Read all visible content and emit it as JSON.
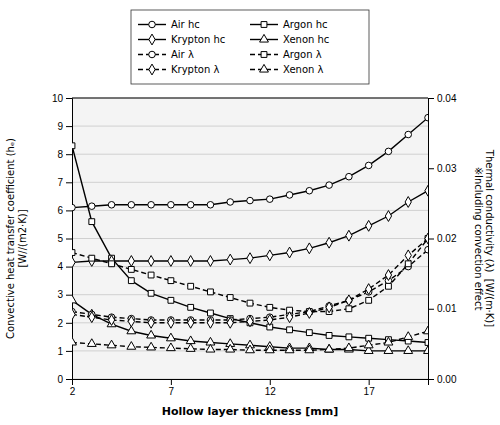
{
  "chart_data": {
    "type": "line",
    "xlabel": "Hollow layer thickness [mm]",
    "ylabel": "Convective heat transfer coefficient (hₑ)\n[W//(m2·K)]",
    "y2label": "Thermal conductivity (λ)  [W/(m·K)]\n※Including convection effect",
    "x": [
      2,
      3,
      4,
      5,
      6,
      7,
      8,
      9,
      10,
      11,
      12,
      13,
      14,
      15,
      16,
      17,
      18,
      19,
      20
    ],
    "xlim": [
      2,
      20
    ],
    "xticks": [
      2,
      7,
      12,
      17
    ],
    "ylim": [
      0,
      10
    ],
    "yticks": [
      0,
      1,
      2,
      3,
      4,
      5,
      6,
      7,
      8,
      9,
      10
    ],
    "y2lim": [
      0,
      0.04
    ],
    "y2ticks": [
      {
        "value": 0,
        "label": "0.00"
      },
      0.01,
      0.02,
      0.03,
      0.04
    ],
    "grid": true,
    "legend": "top",
    "series": [
      {
        "name": "Air hc",
        "color": "black",
        "marker": "circle",
        "line_style": "solid",
        "axis": "y",
        "values": [
          6.1,
          6.15,
          6.2,
          6.2,
          6.2,
          6.2,
          6.2,
          6.2,
          6.3,
          6.35,
          6.4,
          6.55,
          6.7,
          6.9,
          7.2,
          7.6,
          8.1,
          8.7,
          9.3
        ]
      },
      {
        "name": "Argon hc",
        "color": "black",
        "marker": "square",
        "line_style": "solid",
        "axis": "y",
        "values": [
          8.3,
          5.6,
          4.3,
          3.5,
          3.05,
          2.8,
          2.55,
          2.35,
          2.15,
          2.0,
          1.85,
          1.75,
          1.65,
          1.55,
          1.5,
          1.45,
          1.4,
          1.35,
          1.3
        ]
      },
      {
        "name": "Krypton hc",
        "color": "black",
        "marker": "diamond",
        "line_style": "solid",
        "axis": "y",
        "values": [
          4.15,
          4.2,
          4.2,
          4.2,
          4.2,
          4.2,
          4.2,
          4.2,
          4.25,
          4.3,
          4.4,
          4.5,
          4.65,
          4.85,
          5.1,
          5.45,
          5.8,
          6.3,
          6.7
        ]
      },
      {
        "name": "Xenon hc",
        "color": "black",
        "marker": "triangle",
        "line_style": "solid",
        "axis": "y",
        "values": [
          2.8,
          2.3,
          1.95,
          1.7,
          1.55,
          1.45,
          1.35,
          1.3,
          1.25,
          1.2,
          1.15,
          1.1,
          1.1,
          1.05,
          1.05,
          1.0,
          1.0,
          1.0,
          1.0
        ]
      },
      {
        "name": "Air λ",
        "color": "black",
        "marker": "circle",
        "line_style": "dashed",
        "axis": "y2",
        "values": [
          0.0096,
          0.0092,
          0.0088,
          0.0086,
          0.0084,
          0.0084,
          0.0084,
          0.0084,
          0.0084,
          0.0086,
          0.0088,
          0.0092,
          0.0096,
          0.0104,
          0.0112,
          0.0124,
          0.014,
          0.016,
          0.0184
        ]
      },
      {
        "name": "Argon λ",
        "color": "black",
        "marker": "square",
        "line_style": "dashed",
        "axis": "y2",
        "values": [
          0.018,
          0.0172,
          0.0164,
          0.0156,
          0.0148,
          0.014,
          0.0132,
          0.0124,
          0.0116,
          0.0108,
          0.0102,
          0.0098,
          0.0096,
          0.0096,
          0.01,
          0.0112,
          0.0132,
          0.0164,
          0.02
        ]
      },
      {
        "name": "Krypton λ",
        "color": "black",
        "marker": "diamond",
        "line_style": "dashed",
        "axis": "y2",
        "values": [
          0.0092,
          0.0088,
          0.0084,
          0.0082,
          0.008,
          0.008,
          0.008,
          0.008,
          0.008,
          0.0082,
          0.0084,
          0.0088,
          0.0094,
          0.0102,
          0.0112,
          0.0128,
          0.0148,
          0.0176,
          0.02
        ]
      },
      {
        "name": "Xenon λ",
        "color": "black",
        "marker": "triangle",
        "line_style": "dashed",
        "axis": "y2",
        "values": [
          0.0052,
          0.005,
          0.0048,
          0.0046,
          0.0045,
          0.0044,
          0.0043,
          0.0042,
          0.0042,
          0.0041,
          0.0041,
          0.0041,
          0.0041,
          0.0042,
          0.0044,
          0.0048,
          0.0052,
          0.006,
          0.0068
        ]
      }
    ]
  }
}
